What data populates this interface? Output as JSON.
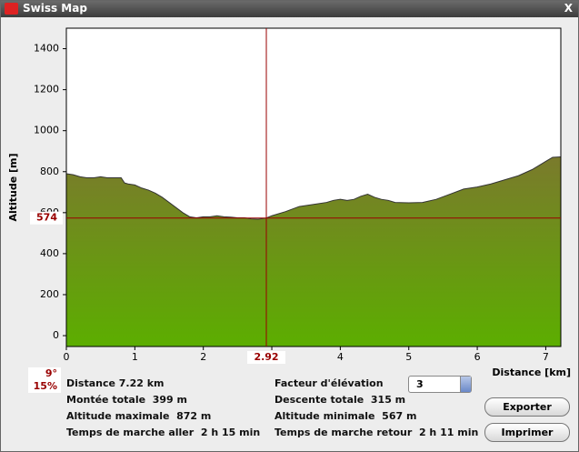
{
  "window_title": "Swiss Map",
  "close_label": "X",
  "chart_data": {
    "type": "area",
    "x_label": "Distance [km]",
    "y_label": "Altitude [m]",
    "x": [
      0,
      0.1,
      0.2,
      0.3,
      0.4,
      0.5,
      0.6,
      0.8,
      0.85,
      0.9,
      1.0,
      1.1,
      1.2,
      1.3,
      1.4,
      1.5,
      1.6,
      1.7,
      1.8,
      1.9,
      2.0,
      2.1,
      2.2,
      2.3,
      2.4,
      2.5,
      2.6,
      2.7,
      2.8,
      2.92,
      3.0,
      3.2,
      3.4,
      3.6,
      3.8,
      3.9,
      4.0,
      4.1,
      4.2,
      4.3,
      4.4,
      4.5,
      4.6,
      4.7,
      4.8,
      5.0,
      5.2,
      5.4,
      5.6,
      5.8,
      6.0,
      6.2,
      6.4,
      6.6,
      6.8,
      7.0,
      7.1,
      7.22
    ],
    "values": [
      790,
      785,
      775,
      770,
      770,
      775,
      770,
      770,
      745,
      740,
      735,
      720,
      710,
      695,
      675,
      650,
      625,
      600,
      580,
      575,
      580,
      580,
      585,
      580,
      578,
      575,
      575,
      570,
      568,
      574,
      585,
      605,
      630,
      640,
      650,
      660,
      665,
      660,
      665,
      680,
      690,
      675,
      665,
      660,
      650,
      648,
      650,
      665,
      690,
      715,
      725,
      740,
      760,
      780,
      810,
      850,
      870,
      872
    ],
    "xlim": [
      0,
      7.22
    ],
    "ylim": [
      -53,
      1500
    ],
    "xticks": [
      0,
      1,
      2,
      3,
      4,
      5,
      6,
      7
    ],
    "yticks": [
      0,
      200,
      400,
      600,
      800,
      1000,
      1200,
      1400
    ],
    "cursor": {
      "x": 2.92,
      "y": 574
    },
    "slope_labels": [
      "9°",
      "15%"
    ],
    "color_top": "#7a7a2c",
    "color_bottom": "#5cae00",
    "cursor_color": "#990000"
  },
  "stats": {
    "left": [
      "Distance 7.22 km",
      "Montée totale  399 m",
      "Altitude maximale  872 m",
      "Temps de marche aller  2 h 15 min"
    ],
    "right": [
      "Facteur d'élévation",
      "Descente totale  315 m",
      "Altitude minimale  567 m",
      "Temps de marche retour  2 h 11 min"
    ]
  },
  "elevation_factor": "3",
  "buttons": [
    "Exporter",
    "Imprimer"
  ]
}
